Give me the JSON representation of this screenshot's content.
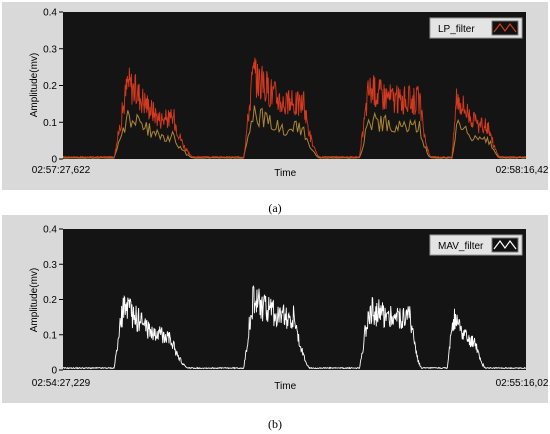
{
  "chart_data": [
    {
      "type": "line",
      "caption": "(a)",
      "ylabel": "Amplitude(mv)",
      "xlabel": "Time",
      "x_start_label": "02:57:27,622",
      "x_end_label": "02:58:16,42",
      "yticks": [
        "0",
        "0.1",
        "0.2",
        "0.3",
        "0.4"
      ],
      "ylim": [
        0,
        0.4
      ],
      "grid": false,
      "legend": "top-right",
      "series": [
        {
          "name": "LP_filter",
          "color": "#d43a1f",
          "envelope_color": "#c79a3a",
          "bursts": [
            {
              "start": 0.11,
              "end": 0.29,
              "rise": 0.03,
              "peak": 0.21,
              "plateau": 0.11,
              "fall": 0.05
            },
            {
              "start": 0.39,
              "end": 0.56,
              "rise": 0.02,
              "peak": 0.23,
              "plateau": 0.15,
              "fall": 0.04
            },
            {
              "start": 0.64,
              "end": 0.8,
              "rise": 0.02,
              "peak": 0.19,
              "plateau": 0.16,
              "fall": 0.03
            },
            {
              "start": 0.84,
              "end": 0.95,
              "rise": 0.01,
              "peak": 0.17,
              "plateau": 0.09,
              "fall": 0.03
            }
          ]
        }
      ]
    },
    {
      "type": "line",
      "caption": "(b)",
      "ylabel": "Amplitude(mv)",
      "xlabel": "Time",
      "x_start_label": "02:54:27,229",
      "x_end_label": "02:55:16,02",
      "yticks": [
        "0",
        "0.1",
        "0.2",
        "0.3",
        "0.4"
      ],
      "ylim": [
        0,
        0.4
      ],
      "grid": false,
      "legend": "top-right",
      "series": [
        {
          "name": "MAV_filter",
          "color": "#ffffff",
          "bursts": [
            {
              "start": 0.11,
              "end": 0.28,
              "rise": 0.02,
              "peak": 0.18,
              "plateau": 0.1,
              "fall": 0.05
            },
            {
              "start": 0.39,
              "end": 0.54,
              "rise": 0.02,
              "peak": 0.2,
              "plateau": 0.15,
              "fall": 0.04
            },
            {
              "start": 0.64,
              "end": 0.78,
              "rise": 0.02,
              "peak": 0.17,
              "plateau": 0.15,
              "fall": 0.03
            },
            {
              "start": 0.83,
              "end": 0.92,
              "rise": 0.01,
              "peak": 0.15,
              "plateau": 0.08,
              "fall": 0.03
            }
          ]
        }
      ]
    }
  ]
}
